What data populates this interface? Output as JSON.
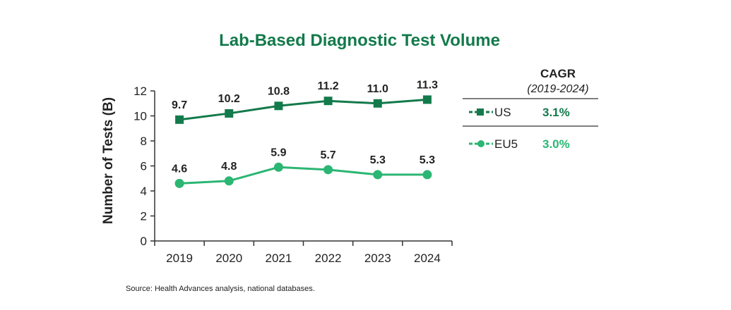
{
  "chart_data": {
    "type": "line",
    "title": "Lab-Based Diagnostic Test Volume",
    "ylabel": "Number of Tests (B)",
    "xlabel": "",
    "categories": [
      "2019",
      "2020",
      "2021",
      "2022",
      "2023",
      "2024"
    ],
    "ylim": [
      0,
      12
    ],
    "yticks": [
      0,
      2,
      4,
      6,
      8,
      10,
      12
    ],
    "series": [
      {
        "name": "US",
        "marker": "square",
        "color": "#137a4b",
        "values": [
          9.7,
          10.2,
          10.8,
          11.2,
          11.0,
          11.3
        ],
        "labels": [
          "9.7",
          "10.2",
          "10.8",
          "11.2",
          "11.0",
          "11.3"
        ],
        "cagr": "3.1%"
      },
      {
        "name": "EU5",
        "marker": "circle",
        "color": "#2bb673",
        "values": [
          4.6,
          4.8,
          5.9,
          5.7,
          5.3,
          5.3
        ],
        "labels": [
          "4.6",
          "4.8",
          "5.9",
          "5.7",
          "5.3",
          "5.3"
        ],
        "cagr": "3.0%"
      }
    ],
    "cagr_header": "CAGR",
    "cagr_period": "(2019-2024)",
    "source": "Source:  Health Advances analysis, national databases."
  },
  "colors": {
    "title": "#137a4b",
    "axis": "#333333",
    "divider": "#555555"
  }
}
